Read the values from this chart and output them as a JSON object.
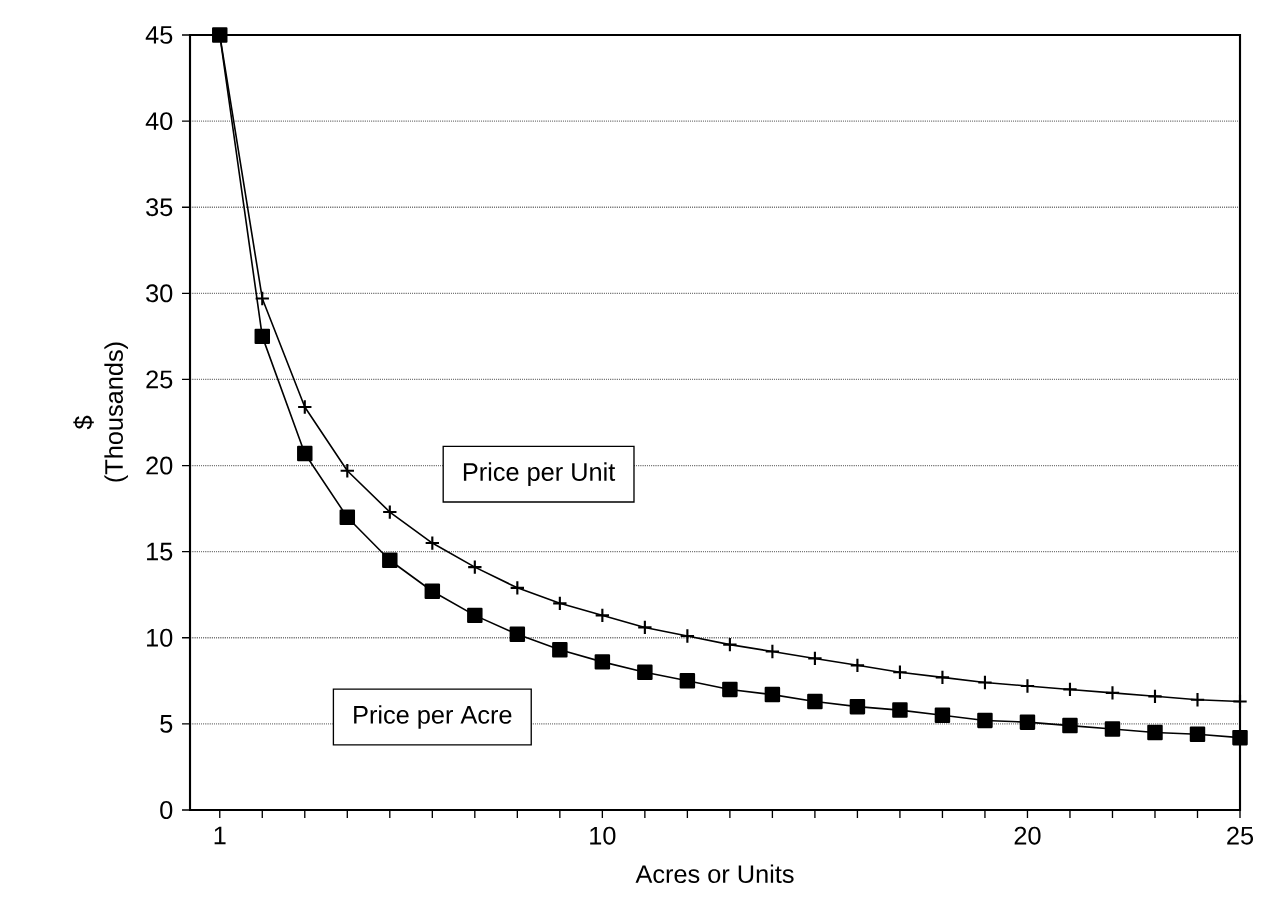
{
  "chart_data": {
    "type": "line",
    "xlabel": "Acres or Units",
    "ylabel": "$ (Thousands)",
    "x": [
      1,
      2,
      3,
      4,
      5,
      6,
      7,
      8,
      9,
      10,
      11,
      12,
      13,
      14,
      15,
      16,
      17,
      18,
      19,
      20,
      21,
      22,
      23,
      24,
      25
    ],
    "xlim": [
      0.3,
      25
    ],
    "xticks": [
      1,
      {
        "value": 2,
        "label": null
      },
      {
        "value": 3,
        "label": null
      },
      {
        "value": 4,
        "label": null
      },
      {
        "value": 5,
        "label": null
      },
      {
        "value": 6,
        "label": null
      },
      {
        "value": 7,
        "label": null
      },
      {
        "value": 8,
        "label": null
      },
      {
        "value": 9,
        "label": null
      },
      10,
      {
        "value": 11,
        "label": null
      },
      {
        "value": 12,
        "label": null
      },
      {
        "value": 13,
        "label": null
      },
      {
        "value": 14,
        "label": null
      },
      {
        "value": 15,
        "label": null
      },
      {
        "value": 16,
        "label": null
      },
      {
        "value": 17,
        "label": null
      },
      {
        "value": 18,
        "label": null
      },
      {
        "value": 19,
        "label": null
      },
      20,
      {
        "value": 21,
        "label": null
      },
      {
        "value": 22,
        "label": null
      },
      {
        "value": 23,
        "label": null
      },
      {
        "value": 24,
        "label": null
      },
      25
    ],
    "ylim": [
      0,
      45
    ],
    "yticks": [
      0,
      5,
      10,
      15,
      20,
      25,
      30,
      35,
      40,
      45
    ],
    "grid": "y",
    "legend": false,
    "series": [
      {
        "name": "Price per Acre",
        "color": "#000000",
        "marker": "square",
        "values": [
          45,
          27.5,
          20.7,
          17.0,
          14.5,
          12.7,
          11.3,
          10.2,
          9.3,
          8.6,
          8.0,
          7.5,
          7.0,
          6.7,
          6.3,
          6.0,
          5.8,
          5.5,
          5.2,
          5.1,
          4.9,
          4.7,
          4.5,
          4.4,
          4.2
        ]
      },
      {
        "name": "Price per Unit",
        "color": "#000000",
        "marker": "cross",
        "values": [
          45,
          29.7,
          23.4,
          19.7,
          17.3,
          15.5,
          14.1,
          12.9,
          12.0,
          11.3,
          10.6,
          10.1,
          9.6,
          9.2,
          8.8,
          8.4,
          8.0,
          7.7,
          7.4,
          7.2,
          7.0,
          6.8,
          6.6,
          6.4,
          6.3
        ]
      }
    ]
  }
}
